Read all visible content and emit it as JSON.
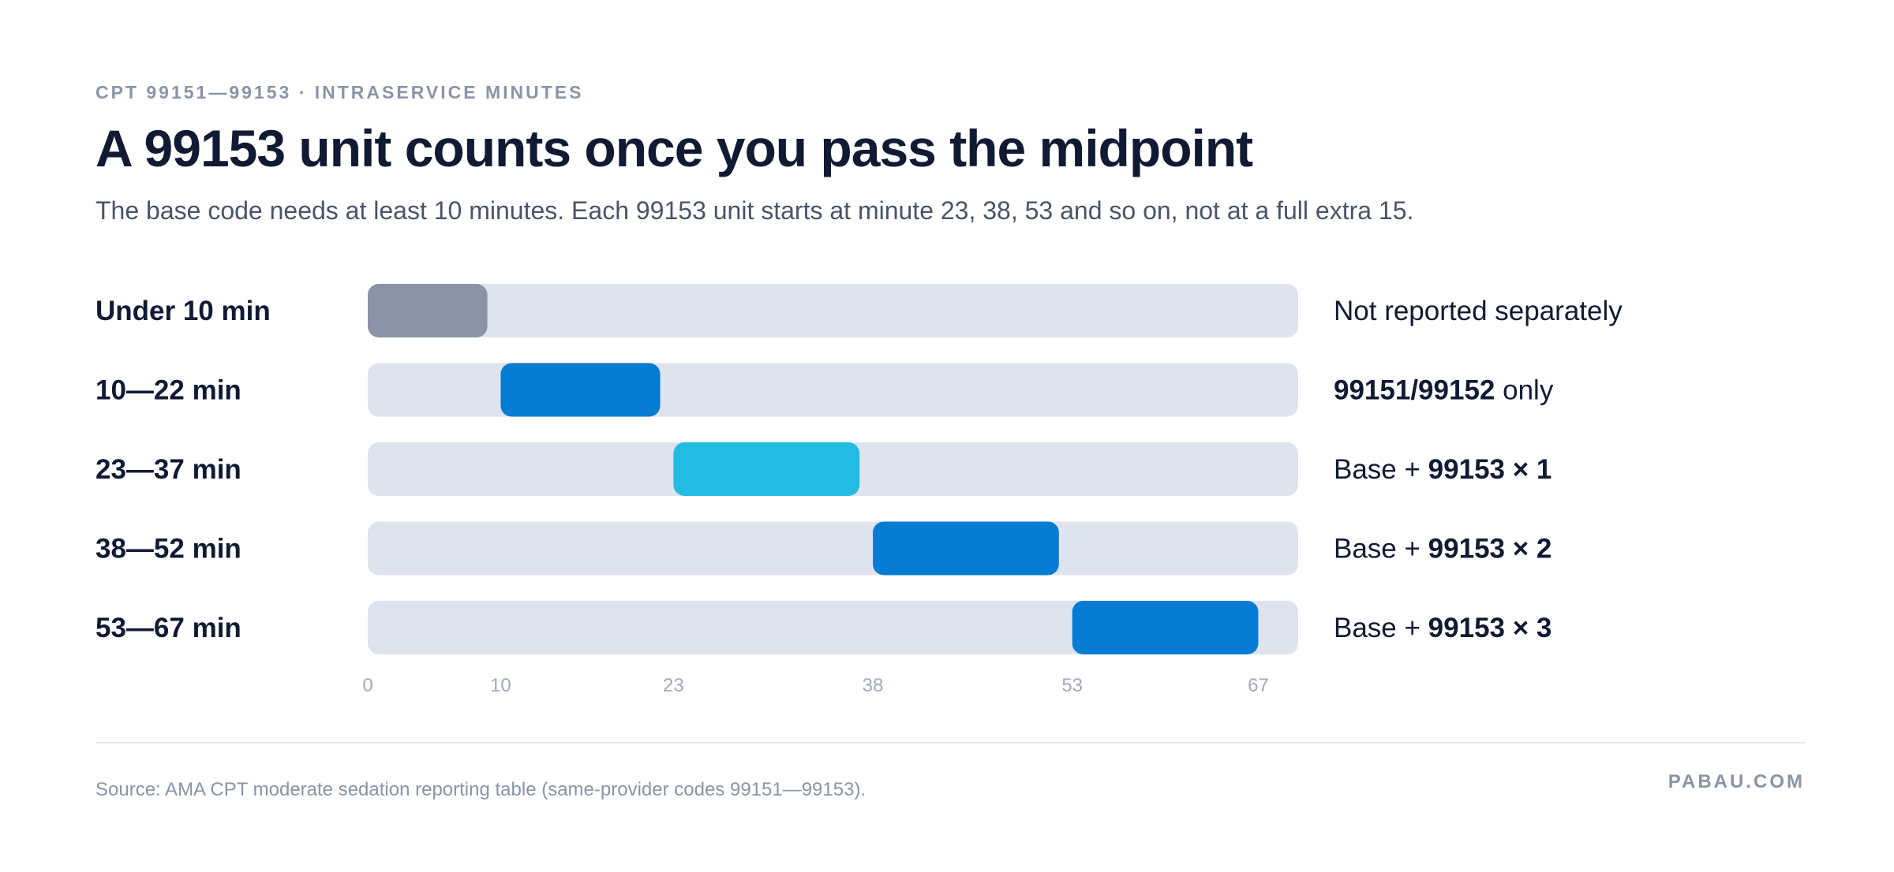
{
  "header": {
    "eyebrow": "CPT 99151—99153 · INTRASERVICE MINUTES",
    "title": "A 99153 unit counts once you pass the midpoint",
    "subtitle": "The base code needs at least 10 minutes. Each 99153 unit starts at minute 23, 38, 53 and so on, not at a full extra 15."
  },
  "chart_data": {
    "type": "bar",
    "orientation": "horizontal-range",
    "xlim": [
      0,
      70
    ],
    "x_ticks": [
      0,
      10,
      23,
      38,
      53,
      67
    ],
    "grid": false,
    "legend": "none",
    "rows": [
      {
        "label": "Under 10 min",
        "start": 0,
        "end": 9,
        "color": "#8a94a6",
        "note_parts": [
          {
            "text": "Not reported separately",
            "bold": false
          }
        ]
      },
      {
        "label": "10—22 min",
        "start": 10,
        "end": 22,
        "color": "#067bd2",
        "note_parts": [
          {
            "text": "99151/99152",
            "bold": true
          },
          {
            "text": " only",
            "bold": false
          }
        ]
      },
      {
        "label": "23—37 min",
        "start": 23,
        "end": 37,
        "color": "#22bce2",
        "note_parts": [
          {
            "text": "Base + ",
            "bold": false
          },
          {
            "text": "99153 × 1",
            "bold": true
          }
        ]
      },
      {
        "label": "38—52 min",
        "start": 38,
        "end": 52,
        "color": "#067bd2",
        "note_parts": [
          {
            "text": "Base + ",
            "bold": false
          },
          {
            "text": "99153 × 2",
            "bold": true
          }
        ]
      },
      {
        "label": "53—67 min",
        "start": 53,
        "end": 67,
        "color": "#067bd2",
        "note_parts": [
          {
            "text": "Base + ",
            "bold": false
          },
          {
            "text": "99153 × 3",
            "bold": true
          }
        ]
      }
    ],
    "track_color": "#dfe3ed"
  },
  "footer": {
    "source": "Source: AMA CPT moderate sedation reporting table (same-provider codes 99151—99153).",
    "brand": "PABAU.COM"
  }
}
